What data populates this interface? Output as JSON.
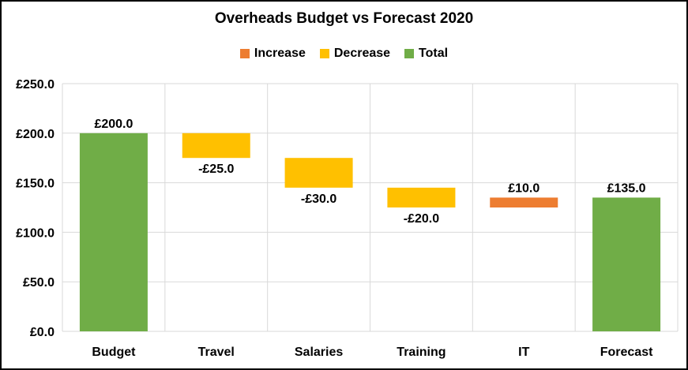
{
  "chart_data": {
    "type": "bar",
    "subtype": "waterfall",
    "title": "Overheads Budget vs Forecast 2020",
    "xlabel": "",
    "ylabel": "",
    "categories": [
      "Budget",
      "Travel",
      "Salaries",
      "Training",
      "IT",
      "Forecast"
    ],
    "bars": [
      {
        "category": "Budget",
        "kind": "Total",
        "start": 0,
        "end": 200,
        "label": "£200.0"
      },
      {
        "category": "Travel",
        "kind": "Decrease",
        "start": 200,
        "end": 175,
        "label": "-£25.0"
      },
      {
        "category": "Salaries",
        "kind": "Decrease",
        "start": 175,
        "end": 145,
        "label": "-£30.0"
      },
      {
        "category": "Training",
        "kind": "Decrease",
        "start": 145,
        "end": 125,
        "label": "-£20.0"
      },
      {
        "category": "IT",
        "kind": "Increase",
        "start": 125,
        "end": 135,
        "label": "£10.0"
      },
      {
        "category": "Forecast",
        "kind": "Total",
        "start": 0,
        "end": 135,
        "label": "£135.0"
      }
    ],
    "ylim": [
      0,
      250
    ],
    "y_ticks": [
      0,
      50,
      100,
      150,
      200,
      250
    ],
    "y_tick_labels": [
      "£0.0",
      "£50.0",
      "£100.0",
      "£150.0",
      "£200.0",
      "£250.0"
    ],
    "legend": [
      {
        "name": "Increase",
        "color": "#ED7D31"
      },
      {
        "name": "Decrease",
        "color": "#FFC000"
      },
      {
        "name": "Total",
        "color": "#70AD47"
      }
    ],
    "legend_position": "top",
    "grid": true
  }
}
